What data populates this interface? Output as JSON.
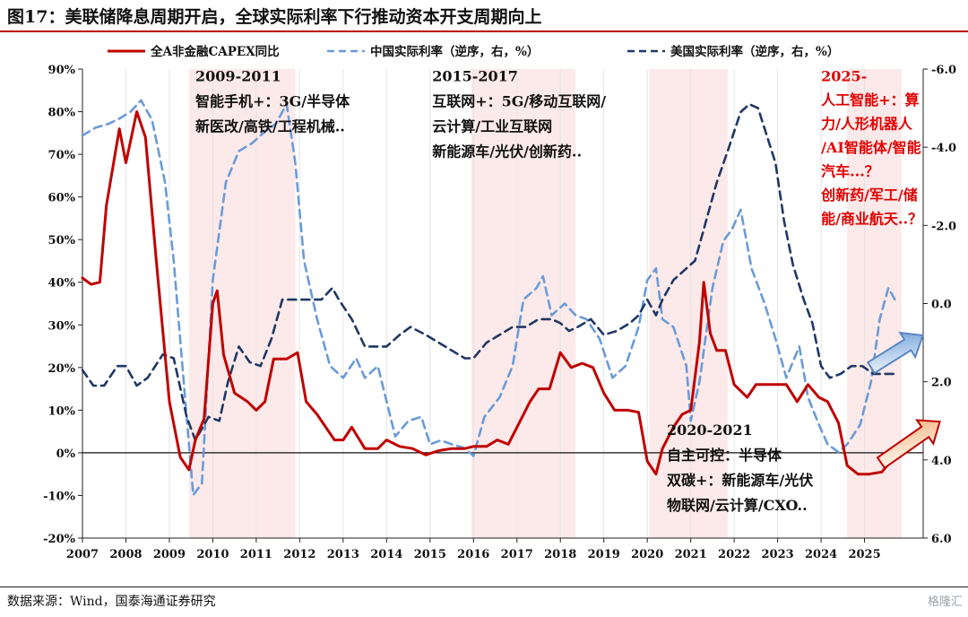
{
  "figure_title": "图17：美联储降息周期开启，全球实际利率下行推动资本开支周期向上",
  "source": "数据来源：Wind，国泰海通证券研究",
  "watermark": "格隆汇",
  "chart_data": {
    "type": "line",
    "legend_position": "top",
    "grid": false,
    "x_ticks": [
      "2007",
      "2008",
      "2009",
      "2010",
      "2011",
      "2012",
      "2013",
      "2014",
      "2015",
      "2016",
      "2017",
      "2018",
      "2019",
      "2020",
      "2021",
      "2022",
      "2023",
      "2024",
      "2025"
    ],
    "left_axis": {
      "ticks": [
        "90%",
        "80%",
        "70%",
        "60%",
        "50%",
        "40%",
        "30%",
        "20%",
        "10%",
        "0%",
        "-10%",
        "-20%"
      ],
      "ylim": [
        -20,
        90
      ]
    },
    "right_axis": {
      "ticks": [
        "-6.0",
        "-4.0",
        "-2.0",
        "0.0",
        "2.0",
        "4.0",
        "6.0"
      ],
      "ylim": [
        -6,
        6
      ],
      "inverted": true
    },
    "series": [
      {
        "name": "全A非金融CAPEX同比",
        "color": "#c00000",
        "style": "solid",
        "axis": "left",
        "points": [
          [
            2007.0,
            41
          ],
          [
            2007.2,
            39.5
          ],
          [
            2007.4,
            40
          ],
          [
            2007.55,
            58
          ],
          [
            2007.85,
            76
          ],
          [
            2008.0,
            68
          ],
          [
            2008.25,
            80
          ],
          [
            2008.45,
            74
          ],
          [
            2008.7,
            45
          ],
          [
            2009.0,
            12
          ],
          [
            2009.25,
            -1
          ],
          [
            2009.45,
            -4
          ],
          [
            2009.6,
            3
          ],
          [
            2009.8,
            8
          ],
          [
            2010.0,
            35
          ],
          [
            2010.1,
            38
          ],
          [
            2010.25,
            23
          ],
          [
            2010.5,
            14
          ],
          [
            2010.8,
            12
          ],
          [
            2011.0,
            10
          ],
          [
            2011.2,
            12
          ],
          [
            2011.4,
            22
          ],
          [
            2011.7,
            22
          ],
          [
            2011.95,
            23.5
          ],
          [
            2012.15,
            12
          ],
          [
            2012.4,
            9
          ],
          [
            2012.8,
            3
          ],
          [
            2013.0,
            3
          ],
          [
            2013.2,
            6
          ],
          [
            2013.5,
            1
          ],
          [
            2013.8,
            1
          ],
          [
            2014.0,
            3
          ],
          [
            2014.3,
            1.5
          ],
          [
            2014.6,
            1
          ],
          [
            2014.9,
            -0.5
          ],
          [
            2015.2,
            0.5
          ],
          [
            2015.5,
            1
          ],
          [
            2015.8,
            1
          ],
          [
            2016.0,
            1.5
          ],
          [
            2016.3,
            1.5
          ],
          [
            2016.55,
            3
          ],
          [
            2016.8,
            2
          ],
          [
            2017.0,
            6
          ],
          [
            2017.3,
            12
          ],
          [
            2017.5,
            15
          ],
          [
            2017.75,
            15
          ],
          [
            2018.0,
            23.5
          ],
          [
            2018.25,
            20
          ],
          [
            2018.5,
            21
          ],
          [
            2018.75,
            20
          ],
          [
            2019.0,
            14
          ],
          [
            2019.25,
            10
          ],
          [
            2019.55,
            10
          ],
          [
            2019.8,
            9.5
          ],
          [
            2020.0,
            -2
          ],
          [
            2020.2,
            -5
          ],
          [
            2020.35,
            1
          ],
          [
            2020.6,
            6
          ],
          [
            2020.8,
            9
          ],
          [
            2021.0,
            10
          ],
          [
            2021.2,
            26
          ],
          [
            2021.3,
            40
          ],
          [
            2021.45,
            28
          ],
          [
            2021.6,
            24
          ],
          [
            2021.8,
            24
          ],
          [
            2022.0,
            16
          ],
          [
            2022.3,
            13
          ],
          [
            2022.5,
            16
          ],
          [
            2022.75,
            16
          ],
          [
            2023.0,
            16
          ],
          [
            2023.2,
            16
          ],
          [
            2023.45,
            12
          ],
          [
            2023.7,
            16
          ],
          [
            2023.95,
            13
          ],
          [
            2024.15,
            12
          ],
          [
            2024.4,
            7
          ],
          [
            2024.6,
            -3
          ],
          [
            2024.85,
            -5
          ],
          [
            2025.1,
            -5
          ],
          [
            2025.4,
            -4.5
          ],
          [
            2025.6,
            -2
          ]
        ]
      },
      {
        "name": "中国实际利率（逆序，右，%）",
        "color": "#6a9bd8",
        "style": "dashed",
        "axis": "right",
        "points": [
          [
            2007.0,
            -4.3
          ],
          [
            2007.3,
            -4.5
          ],
          [
            2007.6,
            -4.6
          ],
          [
            2007.8,
            -4.7
          ],
          [
            2008.1,
            -4.9
          ],
          [
            2008.35,
            -5.2
          ],
          [
            2008.6,
            -4.7
          ],
          [
            2008.9,
            -3.1
          ],
          [
            2009.1,
            -1.1
          ],
          [
            2009.3,
            1.6
          ],
          [
            2009.55,
            4.9
          ],
          [
            2009.75,
            4.6
          ],
          [
            2010.0,
            -0.6
          ],
          [
            2010.3,
            -3.1
          ],
          [
            2010.6,
            -3.9
          ],
          [
            2010.9,
            -4.1
          ],
          [
            2011.2,
            -4.4
          ],
          [
            2011.45,
            -4.6
          ],
          [
            2011.7,
            -5.1
          ],
          [
            2011.9,
            -3.6
          ],
          [
            2012.1,
            -1.1
          ],
          [
            2012.4,
            0.4
          ],
          [
            2012.7,
            1.6
          ],
          [
            2013.0,
            1.9
          ],
          [
            2013.3,
            1.4
          ],
          [
            2013.5,
            1.9
          ],
          [
            2013.8,
            1.6
          ],
          [
            2014.0,
            2.5
          ],
          [
            2014.2,
            3.4
          ],
          [
            2014.5,
            3.0
          ],
          [
            2014.8,
            2.9
          ],
          [
            2015.0,
            3.6
          ],
          [
            2015.25,
            3.5
          ],
          [
            2015.5,
            3.6
          ],
          [
            2015.8,
            3.7
          ],
          [
            2016.0,
            3.9
          ],
          [
            2016.25,
            2.9
          ],
          [
            2016.6,
            2.4
          ],
          [
            2016.9,
            1.6
          ],
          [
            2017.15,
            -0.1
          ],
          [
            2017.45,
            -0.4
          ],
          [
            2017.6,
            -0.7
          ],
          [
            2017.8,
            0.3
          ],
          [
            2018.1,
            0.0
          ],
          [
            2018.35,
            0.3
          ],
          [
            2018.6,
            0.4
          ],
          [
            2018.9,
            0.9
          ],
          [
            2019.2,
            1.9
          ],
          [
            2019.5,
            1.6
          ],
          [
            2019.8,
            0.6
          ],
          [
            2020.0,
            -0.6
          ],
          [
            2020.2,
            -0.9
          ],
          [
            2020.35,
            0.4
          ],
          [
            2020.6,
            0.6
          ],
          [
            2020.9,
            1.6
          ],
          [
            2021.0,
            3.0
          ],
          [
            2021.2,
            2.0
          ],
          [
            2021.5,
            -0.4
          ],
          [
            2021.75,
            -1.6
          ],
          [
            2021.95,
            -1.9
          ],
          [
            2022.15,
            -2.4
          ],
          [
            2022.4,
            -0.9
          ],
          [
            2022.7,
            0.0
          ],
          [
            2022.95,
            0.9
          ],
          [
            2023.2,
            1.9
          ],
          [
            2023.5,
            1.1
          ],
          [
            2023.7,
            2.4
          ],
          [
            2023.95,
            3.1
          ],
          [
            2024.15,
            3.6
          ],
          [
            2024.4,
            3.8
          ],
          [
            2024.6,
            3.6
          ],
          [
            2024.9,
            3.1
          ],
          [
            2025.15,
            2.0
          ],
          [
            2025.35,
            0.4
          ],
          [
            2025.55,
            -0.4
          ],
          [
            2025.75,
            0.0
          ]
        ]
      },
      {
        "name": "美国实际利率（逆序，右，%）",
        "color": "#1f3864",
        "style": "dashed",
        "axis": "right",
        "points": [
          [
            2007.0,
            1.7
          ],
          [
            2007.25,
            2.1
          ],
          [
            2007.5,
            2.1
          ],
          [
            2007.8,
            1.6
          ],
          [
            2008.0,
            1.6
          ],
          [
            2008.25,
            2.1
          ],
          [
            2008.5,
            1.9
          ],
          [
            2008.85,
            1.3
          ],
          [
            2009.1,
            1.4
          ],
          [
            2009.4,
            2.9
          ],
          [
            2009.6,
            3.5
          ],
          [
            2009.9,
            2.9
          ],
          [
            2010.15,
            3.0
          ],
          [
            2010.35,
            2.0
          ],
          [
            2010.6,
            1.1
          ],
          [
            2010.85,
            1.5
          ],
          [
            2011.1,
            1.6
          ],
          [
            2011.35,
            0.9
          ],
          [
            2011.6,
            -0.1
          ],
          [
            2011.9,
            -0.1
          ],
          [
            2012.2,
            -0.1
          ],
          [
            2012.5,
            -0.1
          ],
          [
            2012.75,
            -0.4
          ],
          [
            2012.9,
            -0.1
          ],
          [
            2013.2,
            0.4
          ],
          [
            2013.5,
            1.1
          ],
          [
            2013.8,
            1.1
          ],
          [
            2014.0,
            1.1
          ],
          [
            2014.3,
            0.8
          ],
          [
            2014.55,
            0.6
          ],
          [
            2014.9,
            0.8
          ],
          [
            2015.2,
            1.0
          ],
          [
            2015.5,
            1.2
          ],
          [
            2015.8,
            1.4
          ],
          [
            2016.0,
            1.4
          ],
          [
            2016.3,
            1.0
          ],
          [
            2016.6,
            0.8
          ],
          [
            2016.9,
            0.6
          ],
          [
            2017.2,
            0.6
          ],
          [
            2017.5,
            0.4
          ],
          [
            2017.8,
            0.4
          ],
          [
            2018.0,
            0.5
          ],
          [
            2018.2,
            0.7
          ],
          [
            2018.4,
            0.6
          ],
          [
            2018.7,
            0.4
          ],
          [
            2019.0,
            0.8
          ],
          [
            2019.3,
            0.7
          ],
          [
            2019.6,
            0.5
          ],
          [
            2019.8,
            0.3
          ],
          [
            2020.0,
            -0.1
          ],
          [
            2020.2,
            0.3
          ],
          [
            2020.35,
            -0.1
          ],
          [
            2020.6,
            -0.6
          ],
          [
            2020.9,
            -0.9
          ],
          [
            2021.1,
            -1.1
          ],
          [
            2021.35,
            -2.1
          ],
          [
            2021.6,
            -3.1
          ],
          [
            2021.85,
            -3.9
          ],
          [
            2022.0,
            -4.4
          ],
          [
            2022.15,
            -4.9
          ],
          [
            2022.35,
            -5.1
          ],
          [
            2022.55,
            -5.0
          ],
          [
            2022.75,
            -4.3
          ],
          [
            2022.95,
            -3.6
          ],
          [
            2023.15,
            -2.1
          ],
          [
            2023.35,
            -1.0
          ],
          [
            2023.6,
            -0.1
          ],
          [
            2023.8,
            0.5
          ],
          [
            2024.0,
            1.6
          ],
          [
            2024.2,
            1.9
          ],
          [
            2024.45,
            1.8
          ],
          [
            2024.7,
            1.6
          ],
          [
            2024.95,
            1.6
          ],
          [
            2025.2,
            1.8
          ],
          [
            2025.5,
            1.8
          ],
          [
            2025.75,
            1.8
          ]
        ]
      }
    ],
    "shaded_periods": [
      [
        2009.45,
        2011.9
      ],
      [
        2015.95,
        2018.35
      ],
      [
        2020.05,
        2021.85
      ],
      [
        2024.6,
        2025.85
      ]
    ],
    "annotations": [
      {
        "lines": [
          "2009-2011",
          "智能手机+：3G/半导体",
          "新医改/高铁/工程机械.."
        ],
        "color": "#111111",
        "anchor": [
          2009.6,
          88
        ]
      },
      {
        "lines": [
          "2015-2017",
          "互联网+：5G/移动互联网/",
          "云计算/工业互联网",
          "新能源车/光伏/创新药.."
        ],
        "color": "#111111",
        "anchor": [
          2015.05,
          88
        ]
      },
      {
        "lines": [
          "2020-2021",
          "自主可控：半导体",
          "双碳+：新能源车/光伏",
          "物联网/云计算/CXO.."
        ],
        "color": "#111111",
        "anchor": [
          2020.45,
          5
        ]
      },
      {
        "lines": [
          "2025-",
          "人工智能+：算",
          "力/人形机器人",
          "/AI智能体/智能",
          "汽车...？",
          "创新药/军工/储",
          "能/商业航天..？"
        ],
        "color": "#e00000",
        "anchor": [
          2024.0,
          88
        ]
      }
    ]
  }
}
